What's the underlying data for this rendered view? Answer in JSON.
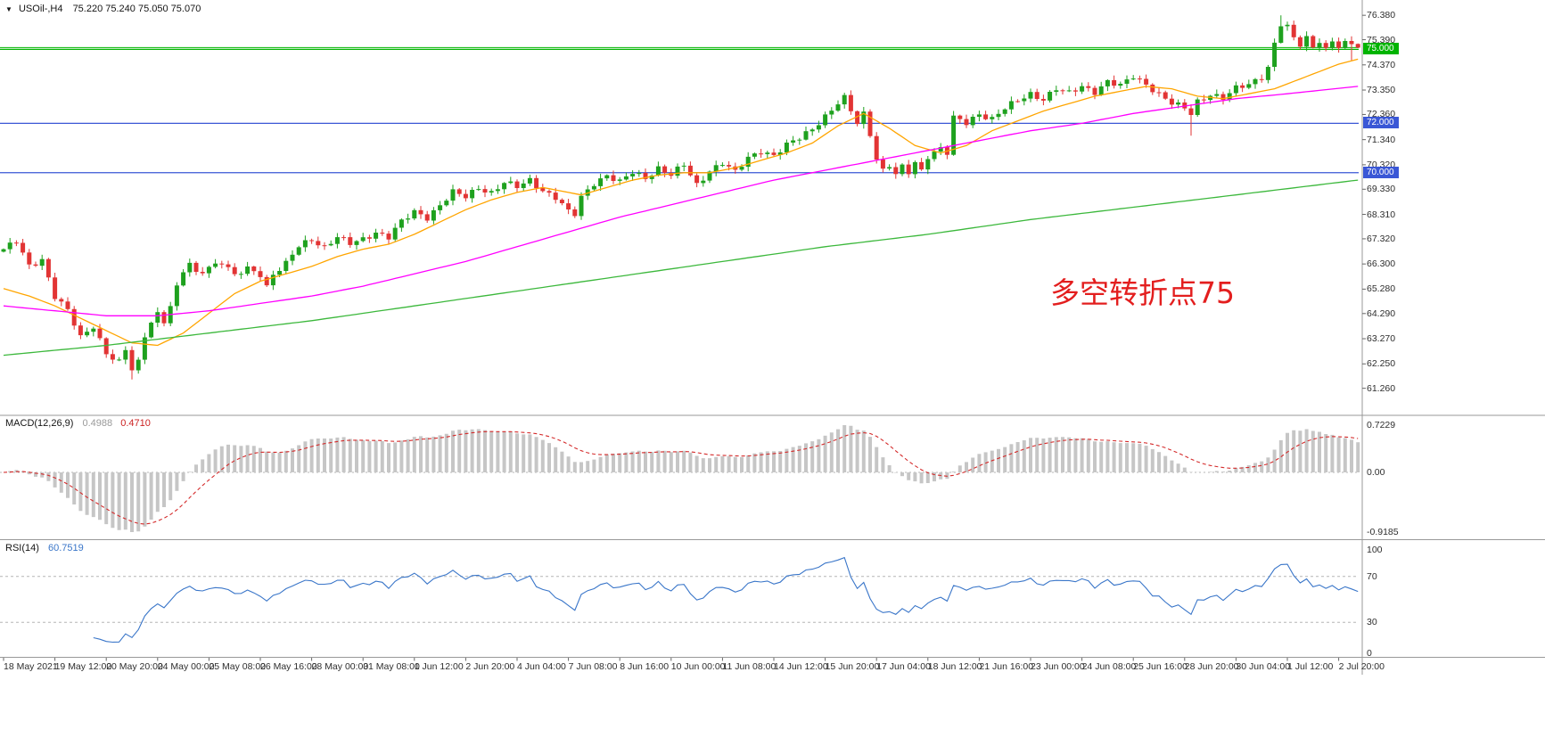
{
  "header": {
    "symbol": "USOil-,H4",
    "ohlc": "75.220 75.240 75.050 75.070"
  },
  "annotation": {
    "text": "多空转折点75",
    "color": "#e31e1e"
  },
  "colors": {
    "up": "#1ea11e",
    "down": "#e23434",
    "ma_fast": "#ffa500",
    "ma_mid": "#ff00ff",
    "ma_slow": "#3cb83c",
    "hline_green": "#00b400",
    "hline_blue": "#3a57d6",
    "macd_hist": "#c6c6c6",
    "macd_signal": "#d42a2a",
    "rsi_line": "#3a76c9",
    "axis_text": "#2e2e2e",
    "separator": "#999999",
    "level_dashed": "#b5b5b5"
  },
  "price_axis": {
    "labels": [
      "76.380",
      "75.390",
      "74.370",
      "73.350",
      "72.360",
      "71.340",
      "70.320",
      "69.330",
      "68.310",
      "67.320",
      "66.300",
      "65.280",
      "64.290",
      "63.270",
      "62.250",
      "61.260"
    ],
    "badges": [
      {
        "text": "75.000",
        "price": 75.0,
        "bg": "#00b400"
      },
      {
        "text": "72.000",
        "price": 72.0,
        "bg": "#3a57d6"
      },
      {
        "text": "70.000",
        "price": 70.0,
        "bg": "#3a57d6"
      }
    ]
  },
  "time_axis": {
    "tick_every": 8,
    "labels": [
      "18 May 2021",
      "19 May 12:00",
      "20 May 20:00",
      "24 May 00:00",
      "25 May 08:00",
      "26 May 16:00",
      "28 May 00:00",
      "31 May 08:00",
      "1 Jun 12:00",
      "2 Jun 20:00",
      "4 Jun 04:00",
      "7 Jun 08:00",
      "8 Jun 16:00",
      "10 Jun 00:00",
      "11 Jun 08:00",
      "14 Jun 12:00",
      "15 Jun 20:00",
      "17 Jun 04:00",
      "18 Jun 12:00",
      "21 Jun 16:00",
      "23 Jun 00:00",
      "24 Jun 08:00",
      "25 Jun 16:00",
      "28 Jun 20:00",
      "30 Jun 04:00",
      "1 Jul 12:00",
      "2 Jul 20:00"
    ]
  },
  "chart_data": {
    "type": "candlestick",
    "symbol": "USOil",
    "timeframe": "H4",
    "candle_count": 212,
    "ylim": [
      60.2,
      77.0
    ],
    "last": {
      "open": 75.22,
      "high": 75.24,
      "low": 75.05,
      "close": 75.07
    },
    "first_open": 66.8,
    "noise_amp": 0.1,
    "wick_amp": 0.16,
    "close_anchors": [
      [
        0,
        66.9
      ],
      [
        2,
        67.2
      ],
      [
        4,
        66.2
      ],
      [
        6,
        66.5
      ],
      [
        8,
        65.0
      ],
      [
        10,
        64.4
      ],
      [
        12,
        63.3
      ],
      [
        14,
        63.8
      ],
      [
        16,
        62.7
      ],
      [
        18,
        62.3
      ],
      [
        19,
        62.8
      ],
      [
        20,
        62.0
      ],
      [
        21,
        62.3
      ],
      [
        22,
        63.4
      ],
      [
        23,
        64.0
      ],
      [
        24,
        64.3
      ],
      [
        25,
        64.0
      ],
      [
        26,
        64.6
      ],
      [
        27,
        65.3
      ],
      [
        28,
        66.0
      ],
      [
        29,
        66.3
      ],
      [
        30,
        65.9
      ],
      [
        32,
        66.2
      ],
      [
        34,
        66.4
      ],
      [
        36,
        65.8
      ],
      [
        38,
        66.1
      ],
      [
        40,
        65.9
      ],
      [
        41,
        65.4
      ],
      [
        42,
        65.9
      ],
      [
        44,
        66.3
      ],
      [
        46,
        67.0
      ],
      [
        48,
        67.3
      ],
      [
        50,
        67.0
      ],
      [
        52,
        67.4
      ],
      [
        54,
        67.1
      ],
      [
        56,
        67.3
      ],
      [
        58,
        67.6
      ],
      [
        60,
        67.4
      ],
      [
        62,
        68.0
      ],
      [
        64,
        68.4
      ],
      [
        66,
        68.2
      ],
      [
        68,
        68.7
      ],
      [
        70,
        69.2
      ],
      [
        72,
        69.0
      ],
      [
        74,
        69.4
      ],
      [
        76,
        69.2
      ],
      [
        78,
        69.6
      ],
      [
        80,
        69.4
      ],
      [
        82,
        69.7
      ],
      [
        84,
        69.3
      ],
      [
        86,
        69.0
      ],
      [
        88,
        68.4
      ],
      [
        89,
        68.3
      ],
      [
        90,
        69.0
      ],
      [
        92,
        69.6
      ],
      [
        94,
        69.9
      ],
      [
        96,
        69.6
      ],
      [
        98,
        70.0
      ],
      [
        100,
        69.8
      ],
      [
        102,
        70.2
      ],
      [
        104,
        69.9
      ],
      [
        106,
        70.3
      ],
      [
        108,
        69.5
      ],
      [
        110,
        70.1
      ],
      [
        112,
        70.4
      ],
      [
        114,
        70.0
      ],
      [
        116,
        70.6
      ],
      [
        118,
        70.9
      ],
      [
        120,
        70.7
      ],
      [
        122,
        71.1
      ],
      [
        124,
        71.4
      ],
      [
        126,
        71.8
      ],
      [
        128,
        72.3
      ],
      [
        130,
        72.8
      ],
      [
        131,
        73.0
      ],
      [
        132,
        72.5
      ],
      [
        133,
        72.0
      ],
      [
        134,
        72.4
      ],
      [
        135,
        71.6
      ],
      [
        136,
        70.6
      ],
      [
        137,
        70.1
      ],
      [
        138,
        70.3
      ],
      [
        139,
        69.9
      ],
      [
        140,
        70.2
      ],
      [
        141,
        70.0
      ],
      [
        142,
        70.4
      ],
      [
        143,
        70.1
      ],
      [
        144,
        70.7
      ],
      [
        146,
        71.0
      ],
      [
        147,
        70.8
      ],
      [
        148,
        72.2
      ],
      [
        150,
        72.0
      ],
      [
        152,
        72.4
      ],
      [
        154,
        72.2
      ],
      [
        156,
        72.6
      ],
      [
        158,
        72.9
      ],
      [
        160,
        73.2
      ],
      [
        162,
        73.0
      ],
      [
        164,
        73.4
      ],
      [
        166,
        73.2
      ],
      [
        168,
        73.5
      ],
      [
        170,
        73.3
      ],
      [
        172,
        73.7
      ],
      [
        174,
        73.5
      ],
      [
        176,
        73.9
      ],
      [
        178,
        73.6
      ],
      [
        180,
        73.2
      ],
      [
        182,
        72.8
      ],
      [
        184,
        72.6
      ],
      [
        185,
        72.4
      ],
      [
        186,
        72.9
      ],
      [
        188,
        73.2
      ],
      [
        190,
        73.0
      ],
      [
        192,
        73.4
      ],
      [
        194,
        73.6
      ],
      [
        196,
        73.9
      ],
      [
        197,
        74.3
      ],
      [
        198,
        75.2
      ],
      [
        199,
        76.0
      ],
      [
        200,
        75.9
      ],
      [
        201,
        75.4
      ],
      [
        202,
        75.2
      ],
      [
        203,
        75.5
      ],
      [
        204,
        75.1
      ],
      [
        205,
        75.4
      ],
      [
        206,
        75.0
      ],
      [
        207,
        75.3
      ],
      [
        208,
        75.1
      ],
      [
        209,
        75.2
      ],
      [
        210,
        75.2
      ],
      [
        211,
        75.07
      ]
    ],
    "spikes": [
      {
        "i": 20,
        "low": 61.62
      },
      {
        "i": 185,
        "low": 71.5
      },
      {
        "i": 199,
        "high": 76.38
      },
      {
        "i": 210,
        "low": 74.55
      }
    ],
    "hlines": [
      {
        "price": 75.0,
        "color_key": "hline_green",
        "label": "75.000"
      },
      {
        "price": 72.0,
        "color_key": "hline_blue",
        "label": "72.000"
      },
      {
        "price": 70.0,
        "color_key": "hline_blue",
        "label": "70.000"
      }
    ],
    "bid_line": {
      "price": 75.07,
      "color_key": "hline_green"
    },
    "moving_averages": [
      {
        "name": "ma-fast",
        "color_key": "ma_fast",
        "anchors": [
          [
            0,
            65.3
          ],
          [
            4,
            65.0
          ],
          [
            8,
            64.6
          ],
          [
            12,
            64.1
          ],
          [
            16,
            63.6
          ],
          [
            20,
            63.1
          ],
          [
            24,
            63.0
          ],
          [
            28,
            63.5
          ],
          [
            32,
            64.3
          ],
          [
            36,
            65.1
          ],
          [
            40,
            65.6
          ],
          [
            44,
            65.9
          ],
          [
            48,
            66.2
          ],
          [
            52,
            66.6
          ],
          [
            56,
            66.9
          ],
          [
            60,
            67.1
          ],
          [
            64,
            67.5
          ],
          [
            68,
            68.0
          ],
          [
            72,
            68.5
          ],
          [
            76,
            68.9
          ],
          [
            80,
            69.2
          ],
          [
            84,
            69.4
          ],
          [
            86,
            69.3
          ],
          [
            90,
            69.1
          ],
          [
            94,
            69.4
          ],
          [
            98,
            69.7
          ],
          [
            102,
            69.9
          ],
          [
            106,
            70.0
          ],
          [
            110,
            70.0
          ],
          [
            114,
            70.2
          ],
          [
            118,
            70.5
          ],
          [
            122,
            70.8
          ],
          [
            126,
            71.2
          ],
          [
            130,
            71.9
          ],
          [
            134,
            72.4
          ],
          [
            138,
            71.8
          ],
          [
            142,
            71.1
          ],
          [
            146,
            70.8
          ],
          [
            150,
            71.1
          ],
          [
            154,
            71.7
          ],
          [
            158,
            72.1
          ],
          [
            162,
            72.5
          ],
          [
            166,
            72.8
          ],
          [
            170,
            73.1
          ],
          [
            174,
            73.3
          ],
          [
            178,
            73.5
          ],
          [
            182,
            73.4
          ],
          [
            186,
            73.1
          ],
          [
            190,
            73.0
          ],
          [
            194,
            73.2
          ],
          [
            198,
            73.4
          ],
          [
            202,
            73.8
          ],
          [
            205,
            74.1
          ],
          [
            208,
            74.4
          ],
          [
            211,
            74.6
          ]
        ]
      },
      {
        "name": "ma-mid",
        "color_key": "ma_mid",
        "anchors": [
          [
            0,
            64.6
          ],
          [
            8,
            64.4
          ],
          [
            16,
            64.2
          ],
          [
            24,
            64.2
          ],
          [
            32,
            64.4
          ],
          [
            40,
            64.7
          ],
          [
            48,
            65.0
          ],
          [
            56,
            65.4
          ],
          [
            64,
            65.9
          ],
          [
            72,
            66.4
          ],
          [
            80,
            67.0
          ],
          [
            88,
            67.6
          ],
          [
            96,
            68.2
          ],
          [
            104,
            68.7
          ],
          [
            112,
            69.2
          ],
          [
            120,
            69.7
          ],
          [
            128,
            70.1
          ],
          [
            136,
            70.5
          ],
          [
            144,
            70.9
          ],
          [
            152,
            71.3
          ],
          [
            160,
            71.7
          ],
          [
            168,
            72.0
          ],
          [
            176,
            72.4
          ],
          [
            184,
            72.7
          ],
          [
            192,
            73.0
          ],
          [
            200,
            73.2
          ],
          [
            211,
            73.5
          ]
        ]
      },
      {
        "name": "ma-slow",
        "color_key": "ma_slow",
        "anchors": [
          [
            0,
            62.6
          ],
          [
            16,
            63.0
          ],
          [
            32,
            63.5
          ],
          [
            48,
            64.0
          ],
          [
            64,
            64.6
          ],
          [
            80,
            65.2
          ],
          [
            96,
            65.8
          ],
          [
            112,
            66.4
          ],
          [
            128,
            67.0
          ],
          [
            144,
            67.5
          ],
          [
            160,
            68.1
          ],
          [
            176,
            68.6
          ],
          [
            192,
            69.1
          ],
          [
            211,
            69.7
          ]
        ]
      }
    ],
    "indicators": {
      "macd": {
        "label": "MACD(12,26,9)",
        "value_main": "0.4988",
        "value_signal": "0.4710",
        "params": [
          12,
          26,
          9
        ],
        "axis": {
          "max": "0.7229",
          "zero": "0.00",
          "min": "-0.9185"
        }
      },
      "rsi": {
        "label": "RSI(14)",
        "value": "60.7519",
        "period": 14,
        "levels": [
          70,
          30
        ],
        "axis": [
          "100",
          "70",
          "30",
          "0"
        ]
      }
    }
  }
}
